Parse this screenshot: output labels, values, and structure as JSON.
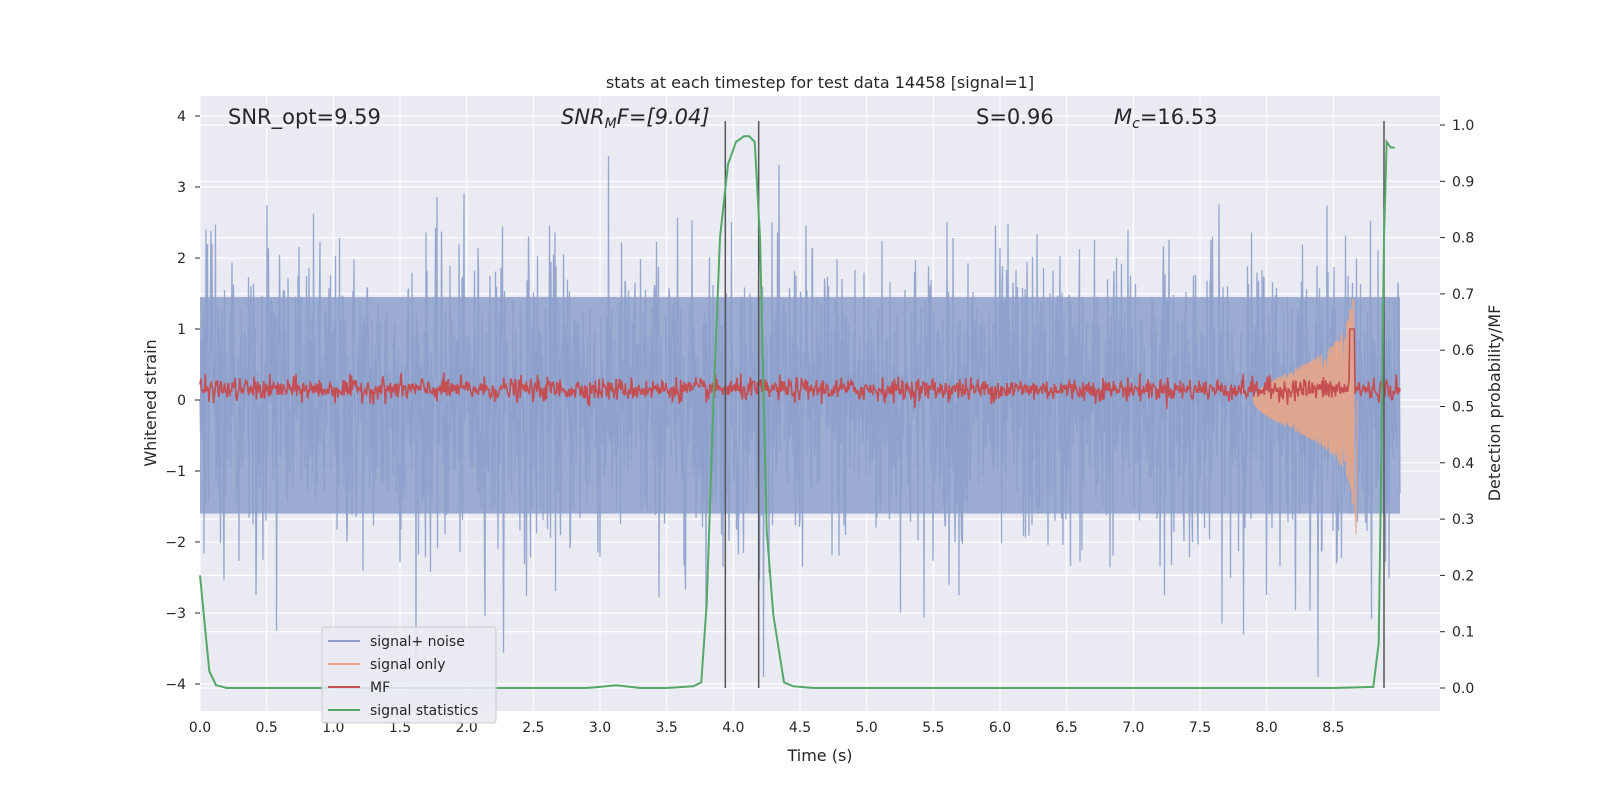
{
  "chart_data": {
    "type": "line",
    "title": "stats at each timestep for test data 14458 [signal=1]",
    "xlabel": "Time (s)",
    "ylabel": "Whitened strain",
    "ylabel_right": "Detection probability/MF",
    "xlim": [
      0,
      9.0
    ],
    "ylim": [
      -4.4,
      4.25
    ],
    "ylim_right": [
      -0.045,
      1.045
    ],
    "xticks": [
      "0.0",
      "0.5",
      "1.0",
      "1.5",
      "2.0",
      "2.5",
      "3.0",
      "3.5",
      "4.0",
      "4.5",
      "5.0",
      "5.5",
      "6.0",
      "6.5",
      "7.0",
      "7.5",
      "8.0",
      "8.5"
    ],
    "yticks_left": [
      "4",
      "3",
      "2",
      "1",
      "0",
      "−1",
      "−2",
      "−3",
      "−4"
    ],
    "yticks_right": [
      "1.0",
      "0.9",
      "0.8",
      "0.7",
      "0.6",
      "0.5",
      "0.4",
      "0.3",
      "0.2",
      "0.1",
      "0.0"
    ],
    "annotations": [
      {
        "text": "SNR_opt=9.59",
        "x_data": 0.19
      },
      {
        "text": "SNR",
        "sub": "M",
        "rest": "F=[9.04]",
        "x_data": 2.6
      },
      {
        "text": "S=0.96",
        "x_data": 5.6
      },
      {
        "text": "M",
        "sub": "c",
        "rest": "=16.53",
        "x_data": 6.6
      }
    ],
    "vertical_lines_x": [
      3.94,
      4.19,
      8.88
    ],
    "series": [
      {
        "name": "signal+ noise",
        "color": "#8da0cb",
        "kind": "noise",
        "amplitude_range": [
          -3.9,
          3.9
        ]
      },
      {
        "name": "signal only",
        "color": "#e8a587",
        "kind": "chirp",
        "merger_x": 8.66,
        "peak": 1.5
      },
      {
        "name": "MF",
        "color": "#c44e52",
        "kind": "band",
        "level": 0.15
      },
      {
        "name": "signal statistics",
        "color": "#55a868",
        "axis": "right",
        "x": [
          0.0,
          0.02,
          0.07,
          0.12,
          0.2,
          0.5,
          1.0,
          1.5,
          2.0,
          2.5,
          2.9,
          3.0,
          3.12,
          3.3,
          3.5,
          3.7,
          3.76,
          3.8,
          3.85,
          3.9,
          3.96,
          4.02,
          4.08,
          4.12,
          4.16,
          4.2,
          4.25,
          4.3,
          4.38,
          4.45,
          4.6,
          5.0,
          6.0,
          7.0,
          8.0,
          8.5,
          8.8,
          8.84,
          8.86,
          8.88,
          8.9,
          8.93,
          8.96
        ],
        "values": [
          0.2,
          0.15,
          0.03,
          0.005,
          0.0,
          0.0,
          0.0,
          0.0,
          0.0,
          0.0,
          0.0,
          0.002,
          0.005,
          0.0,
          0.0,
          0.003,
          0.01,
          0.15,
          0.5,
          0.8,
          0.93,
          0.97,
          0.98,
          0.98,
          0.97,
          0.8,
          0.28,
          0.13,
          0.01,
          0.003,
          0.0,
          0.0,
          0.0,
          0.0,
          0.0,
          0.0,
          0.002,
          0.08,
          0.4,
          0.8,
          0.97,
          0.96,
          0.96
        ]
      }
    ],
    "legend_placement": "lower-left",
    "grid": true
  }
}
